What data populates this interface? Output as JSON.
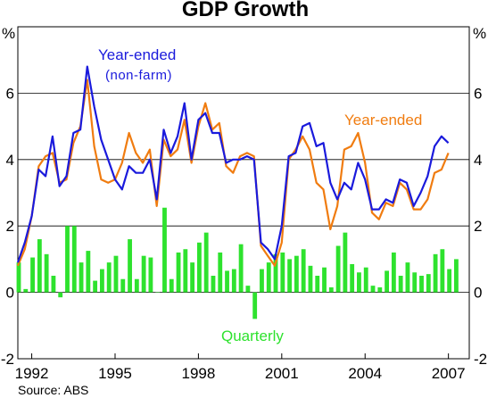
{
  "chart_data": {
    "type": "bar+line",
    "title": "GDP Growth",
    "unit_label": "%",
    "source": "Source: ABS",
    "ylim": [
      -2,
      8
    ],
    "y_ticks": [
      -2,
      0,
      2,
      4,
      6
    ],
    "xlim": [
      1991.5,
      2007.75
    ],
    "x_ticks": [
      1992,
      1995,
      1998,
      2001,
      2004,
      2007
    ],
    "grid": "horizontal",
    "colors": {
      "year_ended_nonfarm": "#1a1adc",
      "year_ended": "#f07c10",
      "quarterly": "#2ee22e"
    },
    "annotations": {
      "blue_line1": "Year-ended",
      "blue_line2": "(non-farm)",
      "orange": "Year-ended",
      "green": "Quarterly"
    },
    "series": [
      {
        "name": "Year-ended (non-farm)",
        "type": "line",
        "start": 1991.5,
        "step": 0.25,
        "values": [
          0.9,
          1.5,
          2.3,
          3.7,
          3.5,
          4.7,
          3.2,
          3.5,
          4.8,
          4.9,
          6.8,
          5.6,
          4.6,
          4.0,
          3.4,
          3.1,
          3.8,
          3.6,
          3.6,
          4.0,
          2.8,
          4.9,
          4.2,
          4.7,
          5.7,
          4.0,
          5.2,
          5.4,
          4.8,
          4.8,
          3.9,
          4.0,
          4.0,
          4.1,
          4.0,
          1.5,
          1.3,
          1.0,
          2.0,
          4.1,
          4.2,
          5.0,
          5.1,
          4.4,
          4.5,
          3.3,
          2.8,
          3.3,
          3.1,
          3.9,
          3.4,
          2.5,
          2.5,
          2.8,
          2.7,
          3.4,
          3.3,
          2.6,
          3.0,
          3.5,
          4.4,
          4.7,
          4.5
        ]
      },
      {
        "name": "Year-ended",
        "type": "line",
        "start": 1991.5,
        "step": 0.25,
        "values": [
          0.8,
          1.3,
          2.3,
          3.8,
          4.1,
          4.2,
          3.3,
          3.4,
          4.5,
          5.0,
          6.4,
          4.4,
          3.4,
          3.3,
          3.4,
          3.9,
          4.8,
          4.2,
          3.9,
          4.3,
          2.6,
          4.6,
          4.1,
          4.3,
          5.2,
          3.9,
          5.0,
          5.7,
          4.9,
          5.1,
          3.8,
          3.6,
          4.1,
          4.2,
          4.1,
          1.4,
          1.1,
          0.8,
          1.5,
          4.0,
          4.3,
          4.7,
          4.3,
          3.3,
          3.1,
          1.9,
          2.6,
          4.3,
          4.4,
          4.8,
          3.9,
          2.4,
          2.2,
          2.7,
          2.6,
          3.3,
          3.1,
          2.5,
          2.5,
          2.8,
          3.6,
          3.7,
          4.2
        ]
      },
      {
        "name": "Quarterly",
        "type": "bar",
        "start": 1991.5,
        "step": 0.25,
        "values": [
          0.9,
          0.1,
          1.05,
          1.6,
          1.15,
          0.5,
          -0.15,
          2.0,
          2.0,
          0.9,
          1.25,
          0.35,
          0.7,
          0.9,
          1.1,
          0.4,
          1.6,
          0.4,
          1.1,
          1.05,
          0.0,
          2.55,
          0.4,
          1.2,
          1.3,
          0.9,
          1.5,
          1.8,
          0.5,
          1.2,
          0.65,
          0.7,
          1.45,
          0.2,
          -0.8,
          0.7,
          0.9,
          1.15,
          1.2,
          1.0,
          1.1,
          1.3,
          0.8,
          0.5,
          0.75,
          0.15,
          1.4,
          1.8,
          0.85,
          0.6,
          0.75,
          0.2,
          0.15,
          0.65,
          1.2,
          0.5,
          0.9,
          0.6,
          0.5,
          0.55,
          1.15,
          1.3,
          0.7,
          1.0
        ]
      }
    ]
  }
}
